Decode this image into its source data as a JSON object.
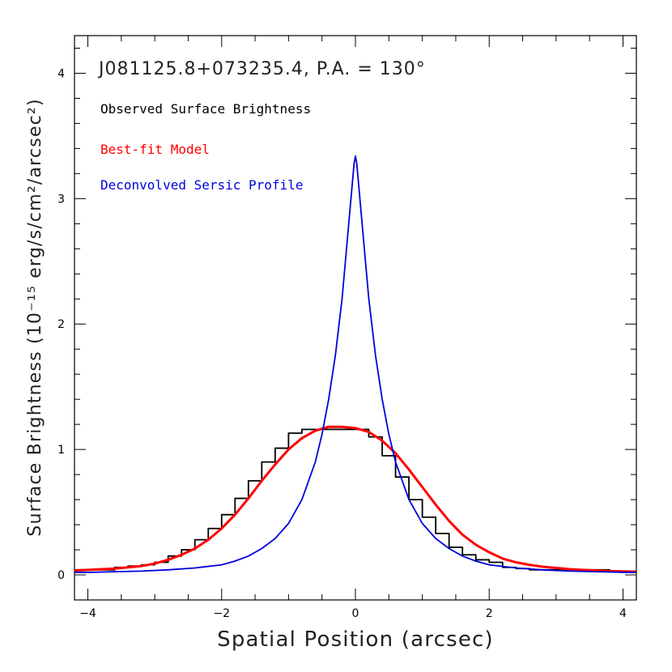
{
  "chart_data": {
    "type": "line",
    "title": "J081125.8+073235.4, P.A. = 130°",
    "xlabel": "Spatial Position (arcsec)",
    "ylabel": "Surface Brightness (10⁻¹⁵ erg/s/cm²/arcsec²)",
    "xlim": [
      -4.2,
      4.2
    ],
    "ylim": [
      -0.2,
      4.3
    ],
    "x_ticks": [
      -4,
      -2,
      0,
      2,
      4
    ],
    "x_tick_labels": [
      "−4",
      "−2",
      "0",
      "2",
      "4"
    ],
    "y_ticks": [
      0,
      1,
      2,
      3,
      4
    ],
    "y_tick_labels": [
      "0",
      "1",
      "2",
      "3",
      "4"
    ],
    "grid": false,
    "legend_placement": "top-left",
    "series": [
      {
        "name": "Observed Surface Brightness",
        "style": "histogram",
        "color": "#000000",
        "bin_edges": [
          -4.2,
          -4.0,
          -3.8,
          -3.6,
          -3.4,
          -3.2,
          -3.0,
          -2.8,
          -2.6,
          -2.4,
          -2.2,
          -2.0,
          -1.8,
          -1.6,
          -1.4,
          -1.2,
          -1.0,
          -0.8,
          -0.6,
          -0.4,
          -0.2,
          0.0,
          0.2,
          0.4,
          0.6,
          0.8,
          1.0,
          1.2,
          1.4,
          1.6,
          1.8,
          2.0,
          2.2,
          2.4,
          2.6,
          2.8,
          3.0,
          3.2,
          3.4,
          3.6,
          3.8,
          4.0,
          4.2
        ],
        "values": [
          0.04,
          0.04,
          0.04,
          0.06,
          0.07,
          0.08,
          0.1,
          0.15,
          0.2,
          0.28,
          0.37,
          0.48,
          0.61,
          0.75,
          0.9,
          1.01,
          1.13,
          1.16,
          1.16,
          1.16,
          1.16,
          1.16,
          1.1,
          0.95,
          0.78,
          0.6,
          0.46,
          0.33,
          0.22,
          0.16,
          0.12,
          0.1,
          0.06,
          0.05,
          0.04,
          0.04,
          0.04,
          0.04,
          0.04,
          0.04,
          0.03,
          0.03
        ]
      },
      {
        "name": "Best-fit Model",
        "style": "line",
        "color": "#ff0000",
        "x": [
          -4.2,
          -4.0,
          -3.8,
          -3.6,
          -3.4,
          -3.2,
          -3.0,
          -2.8,
          -2.6,
          -2.4,
          -2.2,
          -2.0,
          -1.8,
          -1.6,
          -1.4,
          -1.2,
          -1.0,
          -0.8,
          -0.6,
          -0.4,
          -0.2,
          0.0,
          0.2,
          0.4,
          0.6,
          0.8,
          1.0,
          1.2,
          1.4,
          1.6,
          1.8,
          2.0,
          2.2,
          2.4,
          2.6,
          2.8,
          3.0,
          3.2,
          3.4,
          3.6,
          3.8,
          4.0,
          4.2
        ],
        "y": [
          0.035,
          0.04,
          0.045,
          0.05,
          0.06,
          0.07,
          0.09,
          0.12,
          0.16,
          0.21,
          0.28,
          0.37,
          0.48,
          0.61,
          0.75,
          0.88,
          1.0,
          1.09,
          1.15,
          1.18,
          1.18,
          1.17,
          1.14,
          1.07,
          0.97,
          0.84,
          0.7,
          0.56,
          0.43,
          0.32,
          0.24,
          0.18,
          0.13,
          0.1,
          0.08,
          0.065,
          0.055,
          0.045,
          0.04,
          0.035,
          0.03,
          0.028,
          0.025
        ]
      },
      {
        "name": "Deconvolved Sersic Profile",
        "style": "line",
        "color": "#0000dd",
        "x": [
          -4.2,
          -4.0,
          -3.6,
          -3.2,
          -2.8,
          -2.4,
          -2.0,
          -1.8,
          -1.6,
          -1.4,
          -1.2,
          -1.0,
          -0.8,
          -0.6,
          -0.5,
          -0.4,
          -0.3,
          -0.2,
          -0.15,
          -0.1,
          -0.05,
          -0.02,
          0.0,
          0.02,
          0.05,
          0.1,
          0.15,
          0.2,
          0.3,
          0.4,
          0.5,
          0.6,
          0.8,
          1.0,
          1.2,
          1.4,
          1.6,
          1.8,
          2.0,
          2.4,
          2.8,
          3.2,
          3.6,
          4.0,
          4.2
        ],
        "y": [
          0.02,
          0.02,
          0.025,
          0.03,
          0.04,
          0.055,
          0.08,
          0.11,
          0.15,
          0.21,
          0.29,
          0.41,
          0.6,
          0.9,
          1.12,
          1.4,
          1.75,
          2.2,
          2.5,
          2.8,
          3.1,
          3.28,
          3.34,
          3.28,
          3.1,
          2.8,
          2.5,
          2.2,
          1.75,
          1.4,
          1.12,
          0.9,
          0.6,
          0.41,
          0.29,
          0.21,
          0.15,
          0.11,
          0.08,
          0.055,
          0.04,
          0.03,
          0.025,
          0.02,
          0.02
        ]
      }
    ]
  }
}
